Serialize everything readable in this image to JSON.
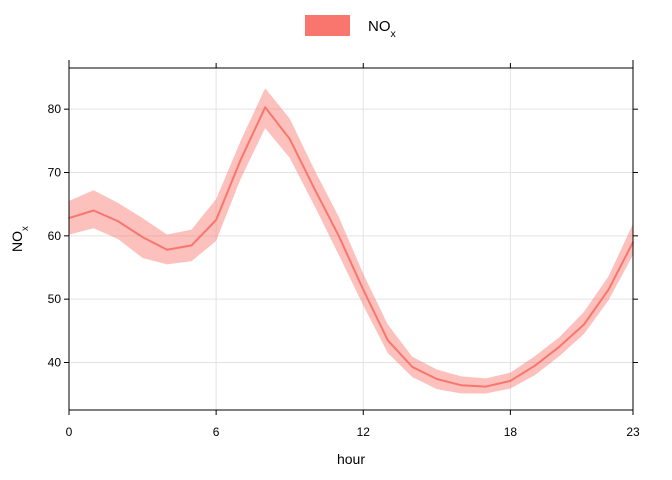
{
  "chart_data": {
    "type": "line",
    "xlabel": "hour",
    "ylabel": {
      "base": "NO",
      "sub": "x"
    },
    "x_ticks": [
      0,
      6,
      12,
      18,
      23
    ],
    "y_ticks": [
      40,
      50,
      60,
      70,
      80
    ],
    "xlim": [
      0,
      23
    ],
    "ylim": [
      32.5,
      86.5
    ],
    "grid": true,
    "legend_position": "top-center",
    "series": [
      {
        "name": {
          "base": "NO",
          "sub": "x"
        },
        "color": "#f8766d",
        "band_color": "#f8766d",
        "x": [
          0,
          1,
          2,
          3,
          4,
          5,
          6,
          7,
          8,
          9,
          10,
          11,
          12,
          13,
          14,
          15,
          16,
          17,
          18,
          19,
          20,
          21,
          22,
          23
        ],
        "values": [
          62.8,
          64.0,
          62.3,
          59.8,
          57.8,
          58.5,
          62.5,
          72.0,
          80.3,
          75.3,
          67.5,
          60.0,
          51.5,
          43.5,
          39.3,
          37.4,
          36.4,
          36.2,
          37.1,
          39.5,
          42.5,
          46.0,
          51.5,
          59.0
        ],
        "lower": [
          60.2,
          61.2,
          59.5,
          56.5,
          55.5,
          56.0,
          59.2,
          69.0,
          77.0,
          72.3,
          64.8,
          57.0,
          49.0,
          41.5,
          37.7,
          35.8,
          35.1,
          35.1,
          35.9,
          38.0,
          41.0,
          44.5,
          49.8,
          57.0
        ],
        "upper": [
          65.5,
          67.2,
          65.2,
          62.8,
          60.2,
          61.0,
          65.8,
          75.0,
          83.3,
          78.5,
          70.5,
          63.0,
          54.0,
          46.0,
          40.9,
          38.9,
          37.8,
          37.5,
          38.4,
          41.0,
          44.0,
          48.0,
          53.6,
          61.9
        ]
      }
    ]
  }
}
